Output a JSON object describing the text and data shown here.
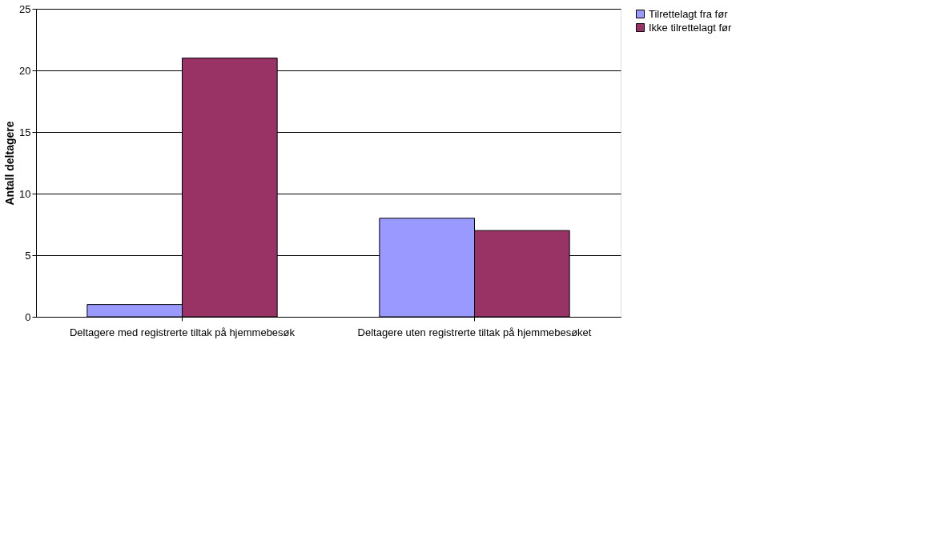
{
  "chart_data": {
    "type": "bar",
    "ylabel": "Antall deltagere",
    "categories": [
      "Deltagere med registrerte tiltak på hjemmebesøk",
      "Deltagere uten registrerte tiltak på hjemmebesøket"
    ],
    "series": [
      {
        "name": "Tilrettelagt fra før",
        "color": "#9999ff",
        "values": [
          1,
          8
        ]
      },
      {
        "name": "Ikke tilrettelagt før",
        "color": "#993366",
        "values": [
          21,
          7
        ]
      }
    ],
    "ylim": [
      0,
      25
    ],
    "yticks": [
      0,
      5,
      10,
      15,
      20,
      25
    ],
    "grid": "y",
    "legend": "right"
  }
}
